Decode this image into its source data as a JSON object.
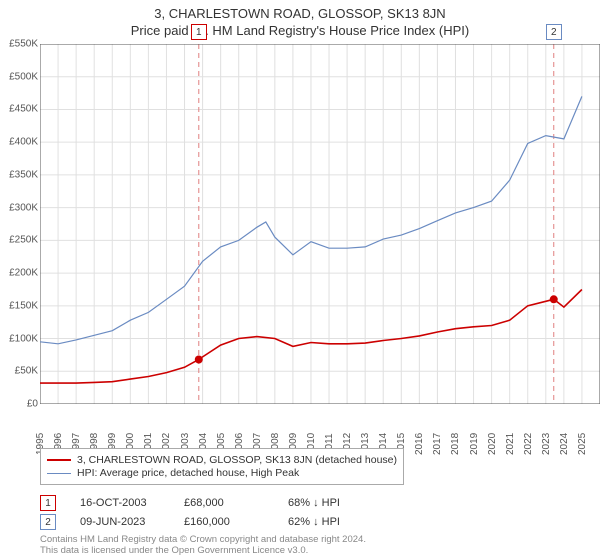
{
  "titles": {
    "line1": "3, CHARLESTOWN ROAD, GLOSSOP, SK13 8JN",
    "line2": "Price paid vs. HM Land Registry's House Price Index (HPI)"
  },
  "chart": {
    "type": "line",
    "x_years": [
      1995,
      1996,
      1997,
      1998,
      1999,
      2000,
      2001,
      2002,
      2003,
      2004,
      2005,
      2006,
      2007,
      2008,
      2009,
      2010,
      2011,
      2012,
      2013,
      2014,
      2015,
      2016,
      2017,
      2018,
      2019,
      2020,
      2021,
      2022,
      2023,
      2024,
      2025
    ],
    "xlim": [
      1995,
      2026
    ],
    "ylim": [
      0,
      550
    ],
    "y_ticks": [
      0,
      50,
      100,
      150,
      200,
      250,
      300,
      350,
      400,
      450,
      500,
      550
    ],
    "y_tick_labels": [
      "£0",
      "£50K",
      "£100K",
      "£150K",
      "£200K",
      "£250K",
      "£300K",
      "£350K",
      "£400K",
      "£450K",
      "£500K",
      "£550K"
    ],
    "grid_color": "#e0e0e0",
    "axis_color": "#555555",
    "background_color": "#ffffff",
    "vline_color": "#e08080",
    "vline_dash": "5,4",
    "series": [
      {
        "id": "price_paid",
        "label": "3, CHARLESTOWN ROAD, GLOSSOP, SK13 8JN (detached house)",
        "color": "#cc0000",
        "width": 1.6,
        "points": [
          [
            1995,
            32
          ],
          [
            1996,
            32
          ],
          [
            1997,
            32
          ],
          [
            1998,
            33
          ],
          [
            1999,
            34
          ],
          [
            2000,
            38
          ],
          [
            2001,
            42
          ],
          [
            2002,
            48
          ],
          [
            2003,
            56
          ],
          [
            2003.79,
            68
          ],
          [
            2004,
            72
          ],
          [
            2005,
            90
          ],
          [
            2006,
            100
          ],
          [
            2007,
            103
          ],
          [
            2008,
            100
          ],
          [
            2009,
            88
          ],
          [
            2010,
            94
          ],
          [
            2011,
            92
          ],
          [
            2012,
            92
          ],
          [
            2013,
            93
          ],
          [
            2014,
            97
          ],
          [
            2015,
            100
          ],
          [
            2016,
            104
          ],
          [
            2017,
            110
          ],
          [
            2018,
            115
          ],
          [
            2019,
            118
          ],
          [
            2020,
            120
          ],
          [
            2021,
            128
          ],
          [
            2022,
            150
          ],
          [
            2023.44,
            160
          ],
          [
            2024,
            148
          ],
          [
            2025,
            175
          ]
        ]
      },
      {
        "id": "hpi",
        "label": "HPI: Average price, detached house, High Peak",
        "color": "#6a8bc2",
        "width": 1.2,
        "points": [
          [
            1995,
            95
          ],
          [
            1996,
            92
          ],
          [
            1997,
            98
          ],
          [
            1998,
            105
          ],
          [
            1999,
            112
          ],
          [
            2000,
            128
          ],
          [
            2001,
            140
          ],
          [
            2002,
            160
          ],
          [
            2003,
            180
          ],
          [
            2004,
            218
          ],
          [
            2005,
            240
          ],
          [
            2006,
            250
          ],
          [
            2007,
            270
          ],
          [
            2007.5,
            278
          ],
          [
            2008,
            255
          ],
          [
            2009,
            228
          ],
          [
            2010,
            248
          ],
          [
            2011,
            238
          ],
          [
            2012,
            238
          ],
          [
            2013,
            240
          ],
          [
            2014,
            252
          ],
          [
            2015,
            258
          ],
          [
            2016,
            268
          ],
          [
            2017,
            280
          ],
          [
            2018,
            292
          ],
          [
            2019,
            300
          ],
          [
            2020,
            310
          ],
          [
            2021,
            342
          ],
          [
            2022,
            398
          ],
          [
            2023,
            410
          ],
          [
            2024,
            405
          ],
          [
            2025,
            470
          ]
        ]
      }
    ],
    "sale_points": [
      {
        "x": 2003.79,
        "y": 68,
        "color": "#cc0000"
      },
      {
        "x": 2023.44,
        "y": 160,
        "color": "#cc0000"
      }
    ],
    "markers": [
      {
        "num": "1",
        "x": 2003.79,
        "border_color": "#cc0000"
      },
      {
        "num": "2",
        "x": 2023.44,
        "border_color": "#6a8bc2"
      }
    ]
  },
  "legend": {
    "items": [
      {
        "color": "#cc0000",
        "width": 2,
        "label": "3, CHARLESTOWN ROAD, GLOSSOP, SK13 8JN (detached house)"
      },
      {
        "color": "#6a8bc2",
        "width": 1.2,
        "label": "HPI: Average price, detached house, High Peak"
      }
    ]
  },
  "sales_table": {
    "rows": [
      {
        "num": "1",
        "border": "#cc0000",
        "date": "16-OCT-2003",
        "price": "£68,000",
        "delta": "68% ↓ HPI"
      },
      {
        "num": "2",
        "border": "#6a8bc2",
        "date": "09-JUN-2023",
        "price": "£160,000",
        "delta": "62% ↓ HPI"
      }
    ]
  },
  "footnote": {
    "line1": "Contains HM Land Registry data © Crown copyright and database right 2024.",
    "line2": "This data is licensed under the Open Government Licence v3.0."
  }
}
